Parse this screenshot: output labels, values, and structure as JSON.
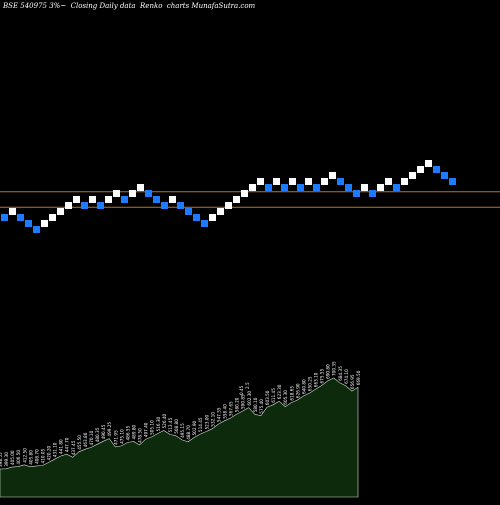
{
  "chart_data": {
    "type": "renko",
    "title": "BSE 540975 3%~  Closing Daily data  Renko  charts MunafaSutra.com",
    "background": "#000000",
    "colors": {
      "up_brick": "#ffffff",
      "down_brick": "#1e7bff",
      "reference_line": "#b8742a",
      "volume_area": "#0d2a0d",
      "volume_outline": "#cfe8cf",
      "volume_label": "#ffffff"
    },
    "bricks": [
      {
        "dir": "down",
        "level": 0
      },
      {
        "dir": "up",
        "level": 1
      },
      {
        "dir": "down",
        "level": 0
      },
      {
        "dir": "down",
        "level": -1
      },
      {
        "dir": "down",
        "level": -2
      },
      {
        "dir": "up",
        "level": -1
      },
      {
        "dir": "up",
        "level": 0
      },
      {
        "dir": "up",
        "level": 1
      },
      {
        "dir": "up",
        "level": 2
      },
      {
        "dir": "up",
        "level": 3
      },
      {
        "dir": "down",
        "level": 2
      },
      {
        "dir": "up",
        "level": 3
      },
      {
        "dir": "down",
        "level": 2
      },
      {
        "dir": "up",
        "level": 3
      },
      {
        "dir": "up",
        "level": 4
      },
      {
        "dir": "down",
        "level": 3
      },
      {
        "dir": "up",
        "level": 4
      },
      {
        "dir": "up",
        "level": 5
      },
      {
        "dir": "down",
        "level": 4
      },
      {
        "dir": "down",
        "level": 3
      },
      {
        "dir": "down",
        "level": 2
      },
      {
        "dir": "up",
        "level": 3
      },
      {
        "dir": "down",
        "level": 2
      },
      {
        "dir": "down",
        "level": 1
      },
      {
        "dir": "down",
        "level": 0
      },
      {
        "dir": "down",
        "level": -1
      },
      {
        "dir": "up",
        "level": 0
      },
      {
        "dir": "up",
        "level": 1
      },
      {
        "dir": "up",
        "level": 2
      },
      {
        "dir": "up",
        "level": 3
      },
      {
        "dir": "up",
        "level": 4
      },
      {
        "dir": "up",
        "level": 5
      },
      {
        "dir": "up",
        "level": 6
      },
      {
        "dir": "down",
        "level": 5
      },
      {
        "dir": "up",
        "level": 6
      },
      {
        "dir": "down",
        "level": 5
      },
      {
        "dir": "up",
        "level": 6
      },
      {
        "dir": "down",
        "level": 5
      },
      {
        "dir": "up",
        "level": 6
      },
      {
        "dir": "down",
        "level": 5
      },
      {
        "dir": "up",
        "level": 6
      },
      {
        "dir": "up",
        "level": 7
      },
      {
        "dir": "down",
        "level": 6
      },
      {
        "dir": "down",
        "level": 5
      },
      {
        "dir": "down",
        "level": 4
      },
      {
        "dir": "up",
        "level": 5
      },
      {
        "dir": "down",
        "level": 4
      },
      {
        "dir": "up",
        "level": 5
      },
      {
        "dir": "up",
        "level": 6
      },
      {
        "dir": "down",
        "level": 5
      },
      {
        "dir": "up",
        "level": 6
      },
      {
        "dir": "up",
        "level": 7
      },
      {
        "dir": "up",
        "level": 8
      },
      {
        "dir": "up",
        "level": 9
      },
      {
        "dir": "down",
        "level": 8
      },
      {
        "dir": "down",
        "level": 7
      },
      {
        "dir": "down",
        "level": 6
      }
    ],
    "reference_lines": [
      {
        "level": 4.3
      },
      {
        "level": 1.7
      }
    ],
    "volume_labels": [
      "398.55",
      "399.30",
      "405.00",
      "406.50",
      "412.50",
      "405.80",
      "408.70",
      "410.05",
      "420.20",
      "431.10",
      "441.80",
      "447.70",
      "437.45",
      "455.50",
      "463.80",
      "470.10",
      "480.35",
      "490.45",
      "499.25",
      "471.95",
      "475.10",
      "486.55",
      "489.80",
      "478.50",
      "497.40",
      "505.10",
      "516.30",
      "526.40",
      "513.45",
      "508.80",
      "495.15",
      "488.70",
      "502.90",
      "514.45",
      "523.00",
      "532.10",
      "547.55",
      "558.40",
      "567.65",
      "580.20",
      "590.85",
      "602.30",
      "580.10",
      "575.40",
      "603.50",
      "611.45",
      "623.30",
      "605.30",
      "618.65",
      "626.90",
      "640.80",
      "650.25",
      "663.10",
      "675.55",
      "690.80",
      "700.35",
      "684.35",
      "674.10",
      "656.95",
      "669.50"
    ],
    "volume_labels_top": [
      "0.45",
      "2.5"
    ]
  }
}
